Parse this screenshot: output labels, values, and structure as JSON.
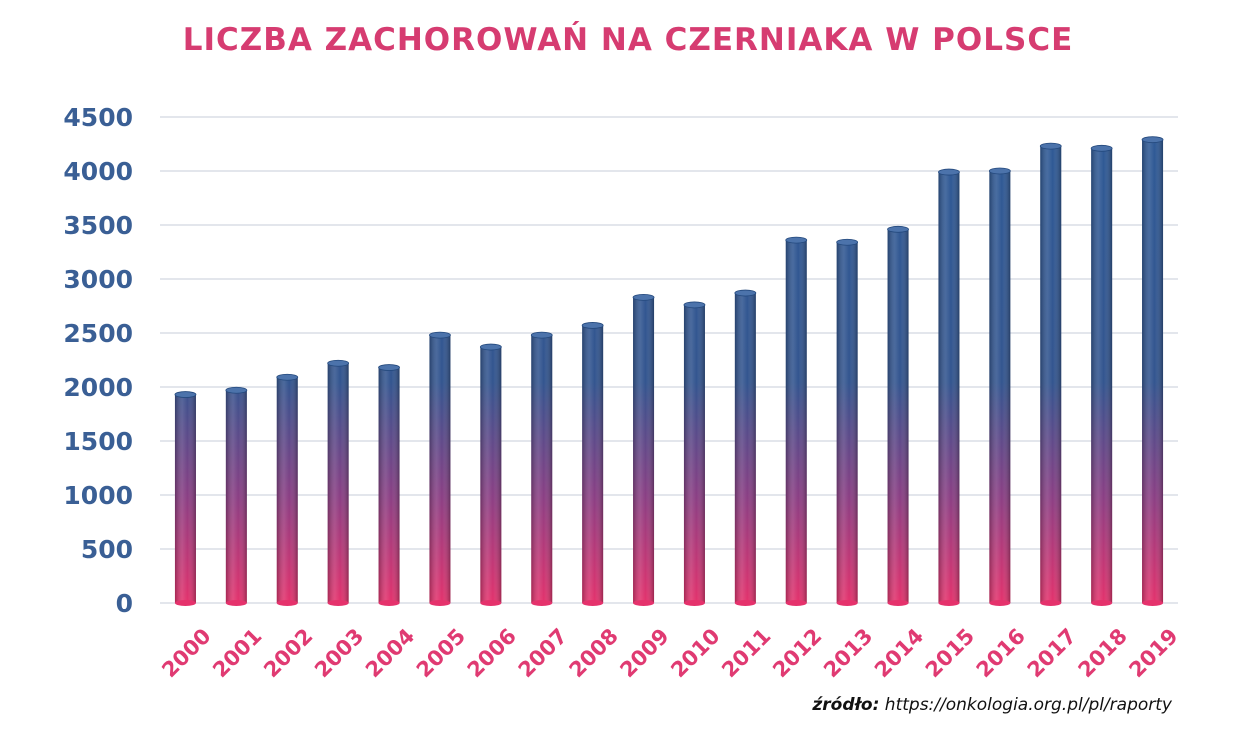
{
  "chart_data": {
    "type": "bar",
    "title": "LICZBA ZACHOROWAŃ NA CZERNIAKA W POLSCE",
    "xlabel": "",
    "ylabel": "",
    "categories": [
      "2000",
      "2001",
      "2002",
      "2003",
      "2004",
      "2005",
      "2006",
      "2007",
      "2008",
      "2009",
      "2010",
      "2011",
      "2012",
      "2013",
      "2014",
      "2015",
      "2016",
      "2017",
      "2018",
      "2019"
    ],
    "values": [
      1930,
      1970,
      2090,
      2220,
      2180,
      2480,
      2370,
      2480,
      2570,
      2830,
      2760,
      2870,
      3360,
      3340,
      3460,
      3990,
      4000,
      4230,
      4210,
      4290
    ],
    "ylim": [
      0,
      4500
    ],
    "yticks": [
      "0",
      "500",
      "1000",
      "1500",
      "2000",
      "2500",
      "3000",
      "3500",
      "4000",
      "4500"
    ],
    "grid": true,
    "legend": "none",
    "colors": {
      "bar_top": "#2e5a96",
      "bar_bottom": "#e5326c",
      "ytick": "#3a5f95",
      "xtick": "#e03a72",
      "title": "#d63c71",
      "grid": "#e3e6ec"
    }
  },
  "source": {
    "label": "źródło:",
    "url": "https://onkologia.org.pl/pl/raporty"
  }
}
